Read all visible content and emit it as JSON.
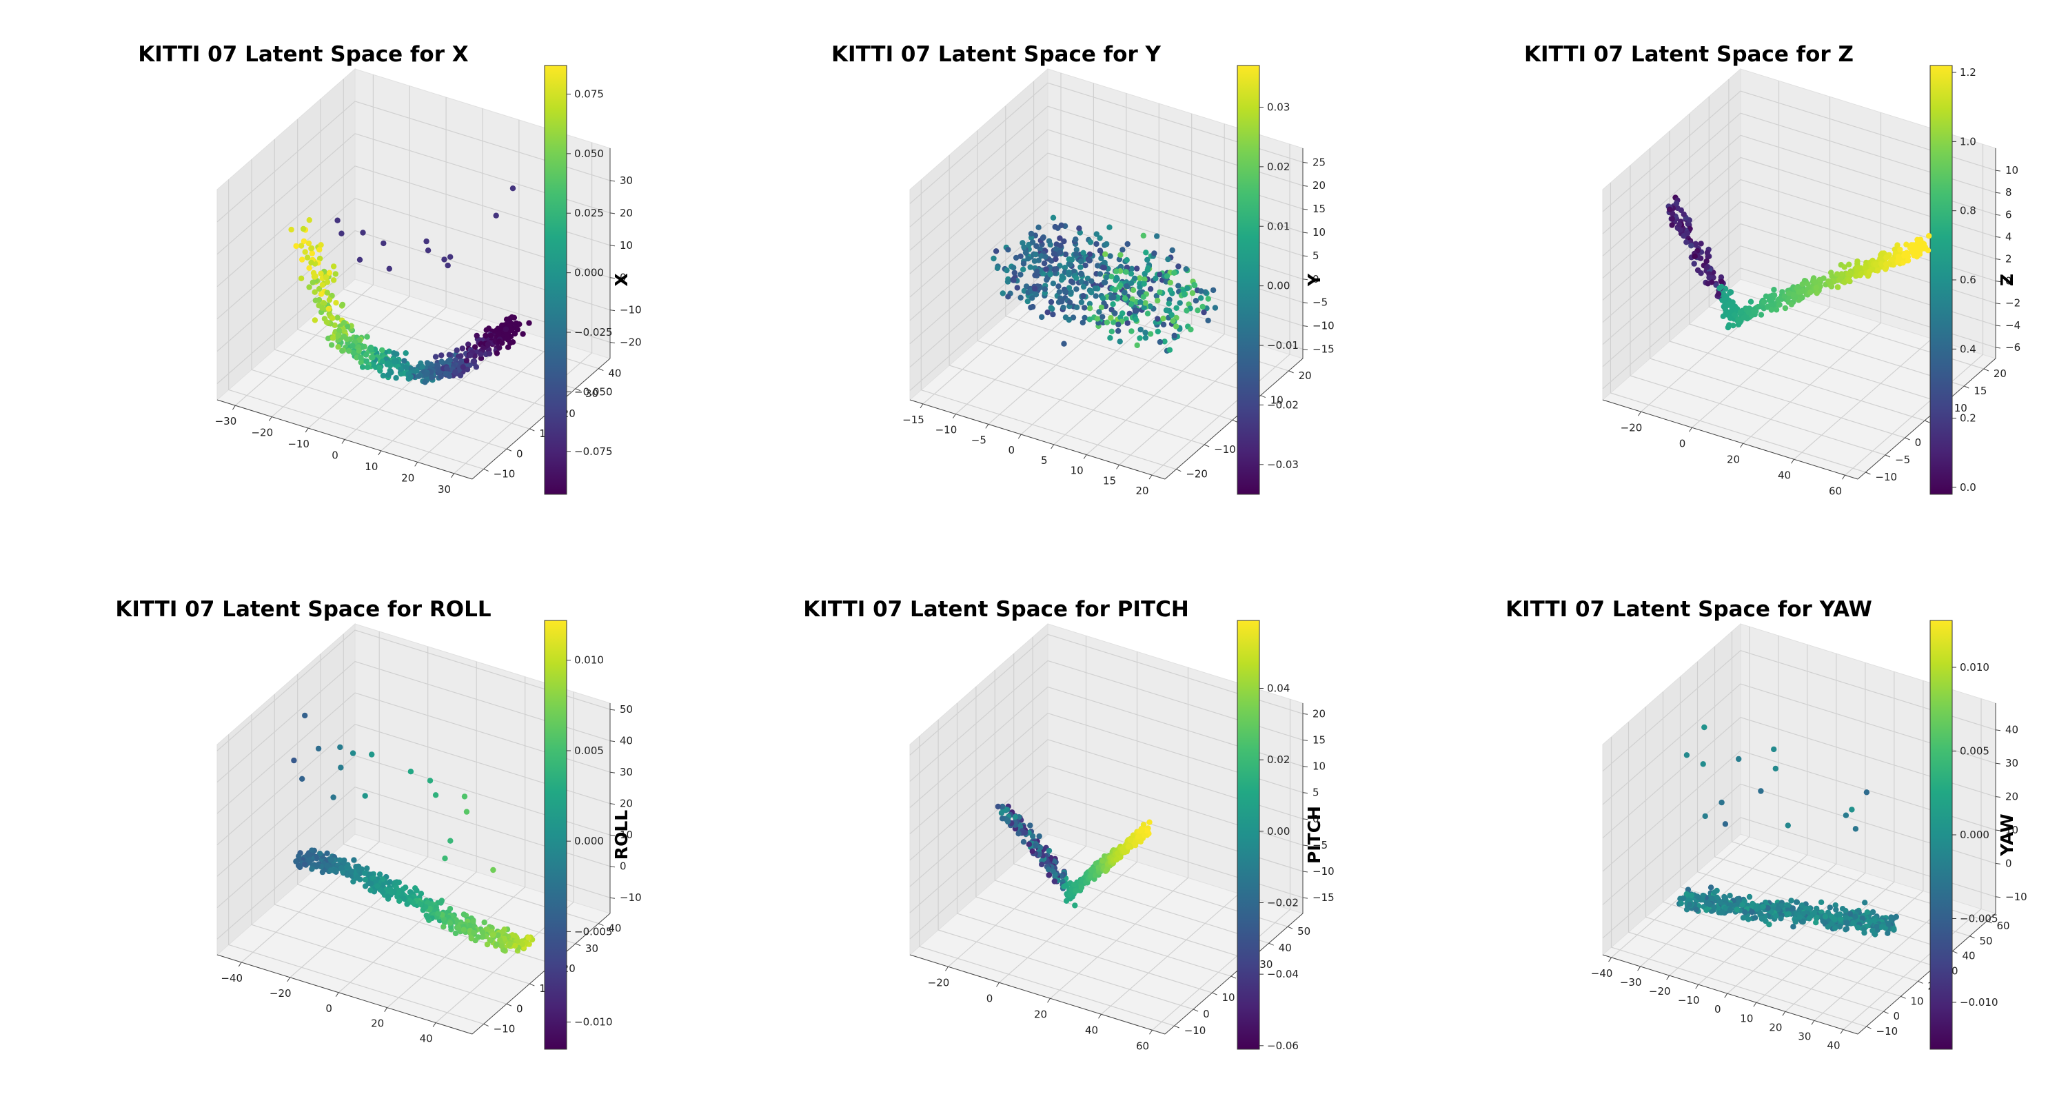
{
  "chart_data": [
    {
      "type": "scatter3d",
      "title": "KITTI 07 Latent Space for X",
      "colorbar": {
        "label": "X",
        "min": -0.093,
        "max": 0.087,
        "ticks": [
          "0.075",
          "0.050",
          "0.025",
          "0.000",
          "−0.025",
          "−0.050",
          "−0.075"
        ],
        "tick_values": [
          0.075,
          0.05,
          0.025,
          0.0,
          -0.025,
          -0.05,
          -0.075
        ]
      },
      "axes": {
        "x": {
          "range": [
            -35,
            35
          ],
          "ticks": [
            "−30",
            "−20",
            "−10",
            "0",
            "10",
            "20",
            "30"
          ],
          "tick_values": [
            -30,
            -20,
            -10,
            0,
            10,
            20,
            30
          ]
        },
        "y": {
          "range": [
            -15,
            45
          ],
          "ticks": [
            "−10",
            "0",
            "10",
            "20",
            "30",
            "40"
          ],
          "tick_values": [
            -10,
            0,
            10,
            20,
            30,
            40
          ]
        },
        "z": {
          "range": [
            -25,
            40
          ],
          "ticks": [
            "−20",
            "−10",
            "0",
            "10",
            "20",
            "30"
          ],
          "tick_values": [
            -20,
            -10,
            0,
            10,
            20,
            30
          ]
        }
      }
    },
    {
      "type": "scatter3d",
      "title": "KITTI 07 Latent Space for Y",
      "colorbar": {
        "label": "Y",
        "min": -0.035,
        "max": 0.037,
        "ticks": [
          "0.03",
          "0.02",
          "0.01",
          "0.00",
          "−0.01",
          "−0.02",
          "−0.03"
        ],
        "tick_values": [
          0.03,
          0.02,
          0.01,
          0.0,
          -0.01,
          -0.02,
          -0.03
        ]
      },
      "axes": {
        "x": {
          "range": [
            -17,
            22
          ],
          "ticks": [
            "−15",
            "−10",
            "−5",
            "0",
            "5",
            "10",
            "15",
            "20"
          ],
          "tick_values": [
            -15,
            -10,
            -5,
            0,
            5,
            10,
            15,
            20
          ]
        },
        "y": {
          "range": [
            -24,
            25
          ],
          "ticks": [
            "−20",
            "−10",
            "0",
            "10",
            "20"
          ],
          "tick_values": [
            -20,
            -10,
            0,
            10,
            20
          ]
        },
        "z": {
          "range": [
            -17,
            28
          ],
          "ticks": [
            "−15",
            "−10",
            "−5",
            "0",
            "5",
            "10",
            "15",
            "20",
            "25"
          ],
          "tick_values": [
            -15,
            -10,
            -5,
            0,
            5,
            10,
            15,
            20,
            25
          ]
        }
      }
    },
    {
      "type": "scatter3d",
      "title": "KITTI 07 Latent Space for Z",
      "colorbar": {
        "label": "Z",
        "min": -0.02,
        "max": 1.22,
        "ticks": [
          "1.2",
          "1.0",
          "0.8",
          "0.6",
          "0.4",
          "0.2",
          "0.0"
        ],
        "tick_values": [
          1.2,
          1.0,
          0.8,
          0.6,
          0.4,
          0.2,
          0.0
        ]
      },
      "axes": {
        "x": {
          "range": [
            -35,
            65
          ],
          "ticks": [
            "−20",
            "0",
            "20",
            "40",
            "60"
          ],
          "tick_values": [
            -20,
            0,
            20,
            40,
            60
          ]
        },
        "y": {
          "range": [
            -12,
            23
          ],
          "ticks": [
            "−10",
            "−5",
            "0",
            "5",
            "10",
            "15",
            "20"
          ],
          "tick_values": [
            -10,
            -5,
            0,
            5,
            10,
            15,
            20
          ]
        },
        "z": {
          "range": [
            -7,
            12
          ],
          "ticks": [
            "−6",
            "−4",
            "−2",
            "0",
            "2",
            "4",
            "6",
            "8",
            "10"
          ],
          "tick_values": [
            -6,
            -4,
            -2,
            0,
            2,
            4,
            6,
            8,
            10
          ]
        }
      }
    },
    {
      "type": "scatter3d",
      "title": "KITTI 07 Latent Space for ROLL",
      "colorbar": {
        "label": "ROLL",
        "min": -0.0115,
        "max": 0.0122,
        "ticks": [
          "0.010",
          "0.005",
          "0.000",
          "−0.005",
          "−0.010"
        ],
        "tick_values": [
          0.01,
          0.005,
          0.0,
          -0.005,
          -0.01
        ]
      },
      "axes": {
        "x": {
          "range": [
            -50,
            55
          ],
          "ticks": [
            "−40",
            "−20",
            "0",
            "20",
            "40"
          ],
          "tick_values": [
            -40,
            -20,
            0,
            20,
            40
          ]
        },
        "y": {
          "range": [
            -15,
            45
          ],
          "ticks": [
            "−10",
            "0",
            "10",
            "20",
            "30",
            "40"
          ],
          "tick_values": [
            -10,
            0,
            10,
            20,
            30,
            40
          ]
        },
        "z": {
          "range": [
            -15,
            52
          ],
          "ticks": [
            "−10",
            "0",
            "10",
            "20",
            "30",
            "40",
            "50"
          ],
          "tick_values": [
            -10,
            0,
            10,
            20,
            30,
            40,
            50
          ]
        }
      }
    },
    {
      "type": "scatter3d",
      "title": "KITTI 07 Latent Space for PITCH",
      "colorbar": {
        "label": "PITCH",
        "min": -0.061,
        "max": 0.059,
        "ticks": [
          "0.04",
          "0.02",
          "0.00",
          "−0.02",
          "−0.04",
          "−0.06"
        ],
        "tick_values": [
          0.04,
          0.02,
          0.0,
          -0.02,
          -0.04,
          -0.06
        ]
      },
      "axes": {
        "x": {
          "range": [
            -35,
            65
          ],
          "ticks": [
            "−20",
            "0",
            "20",
            "40",
            "60"
          ],
          "tick_values": [
            -20,
            0,
            20,
            40,
            60
          ]
        },
        "y": {
          "range": [
            -15,
            58
          ],
          "ticks": [
            "−10",
            "0",
            "10",
            "20",
            "30",
            "40",
            "50"
          ],
          "tick_values": [
            -10,
            0,
            10,
            20,
            30,
            40,
            50
          ]
        },
        "z": {
          "range": [
            -18,
            22
          ],
          "ticks": [
            "−15",
            "−10",
            "−5",
            "0",
            "5",
            "10",
            "15",
            "20"
          ],
          "tick_values": [
            -15,
            -10,
            -5,
            0,
            5,
            10,
            15,
            20
          ]
        }
      }
    },
    {
      "type": "scatter3d",
      "title": "KITTI 07 Latent Space for YAW",
      "colorbar": {
        "label": "YAW",
        "min": -0.0128,
        "max": 0.0128,
        "ticks": [
          "0.010",
          "0.005",
          "0.000",
          "−0.005",
          "−0.010"
        ],
        "tick_values": [
          0.01,
          0.005,
          0.0,
          -0.005,
          -0.01
        ]
      },
      "axes": {
        "x": {
          "range": [
            -43,
            45
          ],
          "ticks": [
            "−40",
            "−30",
            "−20",
            "−10",
            "0",
            "10",
            "20",
            "30",
            "40"
          ],
          "tick_values": [
            -40,
            -30,
            -20,
            -10,
            0,
            10,
            20,
            30,
            40
          ]
        },
        "y": {
          "range": [
            -15,
            65
          ],
          "ticks": [
            "−10",
            "0",
            "10",
            "20",
            "30",
            "40",
            "50",
            "60"
          ],
          "tick_values": [
            -10,
            0,
            10,
            20,
            30,
            40,
            50,
            60
          ]
        },
        "z": {
          "range": [
            -15,
            48
          ],
          "ticks": [
            "−10",
            "0",
            "10",
            "20",
            "30",
            "40"
          ],
          "tick_values": [
            -10,
            0,
            10,
            20,
            30,
            40
          ]
        }
      }
    }
  ]
}
